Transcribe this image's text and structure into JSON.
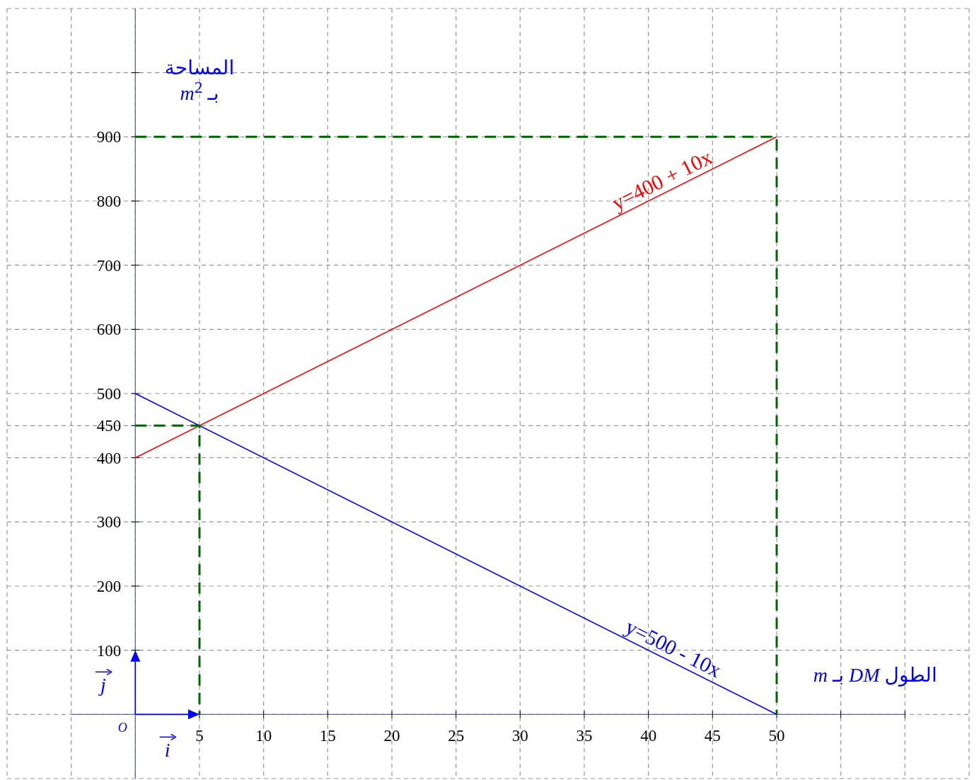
{
  "chart_data": {
    "type": "line",
    "xlabel": "الطول *DM* بـ *m*",
    "ylabel": "المساحة بـ *m*$^{2}$",
    "xlim": [
      -10,
      65
    ],
    "ylim": [
      -100,
      1100
    ],
    "xticks": [
      {
        "value": -10,
        "label": null
      },
      {
        "value": -5,
        "label": null
      },
      {
        "value": 0,
        "label": null
      },
      5,
      10,
      15,
      20,
      25,
      30,
      35,
      40,
      45,
      50,
      {
        "value": 55,
        "label": null
      },
      {
        "value": 60,
        "label": null
      },
      {
        "value": 65,
        "label": null
      }
    ],
    "yticks": [
      {
        "value": -100,
        "label": null
      },
      {
        "value": 0,
        "label": null
      },
      100,
      200,
      300,
      400,
      450,
      500,
      600,
      700,
      800,
      900,
      {
        "value": 1000,
        "label": null
      },
      {
        "value": 1100,
        "label": null
      }
    ],
    "grid": true,
    "marker": "none",
    "series": [
      {
        "color": "#ff0000",
        "x": [
          0,
          50
        ],
        "values": [
          400,
          900
        ]
      },
      {
        "color": "#0000ff",
        "x": [
          0,
          50
        ],
        "values": [
          500,
          0
        ]
      },
      {
        "color": "#006400",
        "x": [
          0,
          50,
          50
        ],
        "values": [
          900,
          900,
          0
        ],
        "line_style": "dashed"
      },
      {
        "color": "#006400",
        "x": [
          0,
          5,
          5
        ],
        "values": [
          450,
          450,
          0
        ],
        "line_style": "dashed"
      }
    ],
    "annotations": [
      "y=400 + 10x",
      "y=500 - 10x",
      "O",
      "i",
      "j"
    ]
  }
}
